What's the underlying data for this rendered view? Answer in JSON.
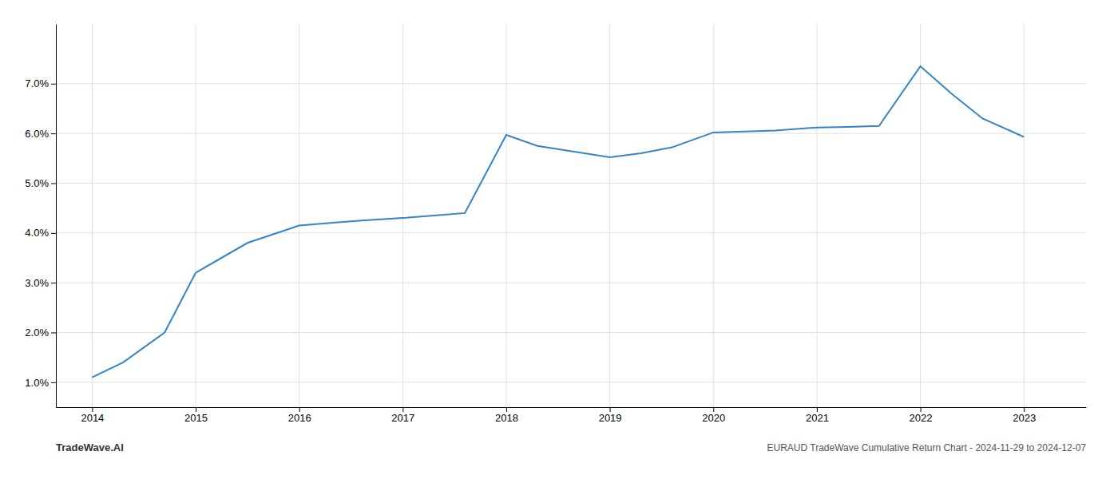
{
  "chart_data": {
    "type": "line",
    "title": "EURAUD TradeWave Cumulative Return Chart - 2024-11-29 to 2024-12-07",
    "annotations": [
      "TradeWave.AI"
    ],
    "x": [
      2014,
      2014.3,
      2014.7,
      2015,
      2015.5,
      2016,
      2016.3,
      2016.6,
      2017,
      2017.3,
      2017.6,
      2018,
      2018.3,
      2019,
      2019.3,
      2019.6,
      2020,
      2020.3,
      2020.6,
      2021,
      2021.3,
      2021.6,
      2022,
      2022.3,
      2022.6,
      2023
    ],
    "values": [
      1.1,
      1.4,
      2.0,
      3.2,
      3.8,
      4.15,
      4.2,
      4.25,
      4.3,
      4.35,
      4.4,
      5.97,
      5.75,
      5.52,
      5.6,
      5.72,
      6.02,
      6.04,
      6.06,
      6.12,
      6.13,
      6.15,
      7.35,
      6.8,
      6.3,
      5.93
    ],
    "color": "#3385c6",
    "xlim": [
      2013.65,
      2023.6
    ],
    "ylim": [
      0.5,
      8.2
    ],
    "xticks": [
      2014,
      2015,
      2016,
      2017,
      2018,
      2019,
      2020,
      2021,
      2022,
      2023
    ],
    "yticks": [
      {
        "value": 1.0,
        "label": "1.0%"
      },
      {
        "value": 2.0,
        "label": "2.0%"
      },
      {
        "value": 3.0,
        "label": "3.0%"
      },
      {
        "value": 4.0,
        "label": "4.0%"
      },
      {
        "value": 5.0,
        "label": "5.0%"
      },
      {
        "value": 6.0,
        "label": "6.0%"
      },
      {
        "value": 7.0,
        "label": "7.0%"
      }
    ],
    "grid": true
  }
}
